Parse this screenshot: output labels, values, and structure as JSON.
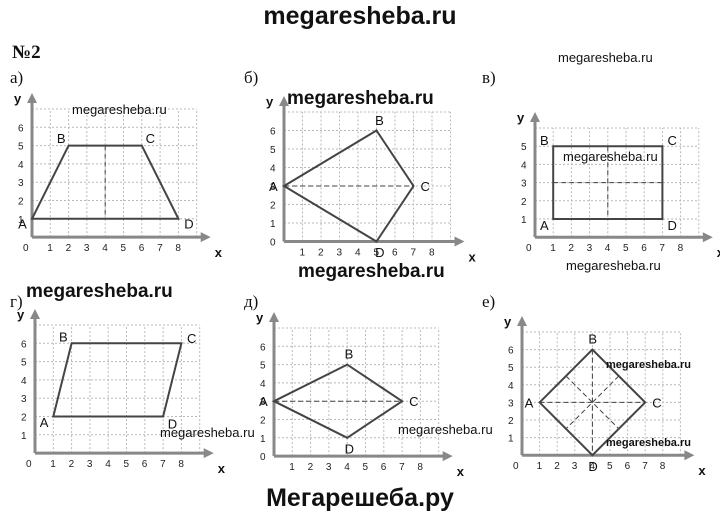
{
  "header": {
    "site": "megaresheba.ru",
    "problem": "№2"
  },
  "footer": {
    "site": "Мегарешеба.ру"
  },
  "panels": [
    {
      "letter": "а)",
      "x_name": "x",
      "y_name": "y",
      "x_ticks": [
        "0",
        "1",
        "2",
        "3",
        "4",
        "5",
        "6",
        "7",
        "8"
      ],
      "y_ticks": [
        "1",
        "2",
        "3",
        "4",
        "5",
        "6"
      ],
      "vertices": [
        {
          "label": "A",
          "x": 0,
          "y": 1
        },
        {
          "label": "B",
          "x": 2,
          "y": 5
        },
        {
          "label": "C",
          "x": 6,
          "y": 5
        },
        {
          "label": "D",
          "x": 8,
          "y": 1
        }
      ],
      "dashed": [
        {
          "x1": 4,
          "y1": 5,
          "x2": 4,
          "y2": 1
        }
      ]
    },
    {
      "letter": "б)",
      "x_name": "x",
      "y_name": "y",
      "x_ticks": [
        "1",
        "2",
        "3",
        "4",
        "5",
        "6",
        "7",
        "8"
      ],
      "y_ticks": [
        "0",
        "1",
        "2",
        "3",
        "4",
        "5",
        "6"
      ],
      "vertices": [
        {
          "label": "A",
          "x": 0,
          "y": 3
        },
        {
          "label": "B",
          "x": 5,
          "y": 6
        },
        {
          "label": "C",
          "x": 7,
          "y": 3
        },
        {
          "label": "D",
          "x": 5,
          "y": 0
        }
      ],
      "dashed": [
        {
          "x1": 0,
          "y1": 3,
          "x2": 7,
          "y2": 3
        }
      ]
    },
    {
      "letter": "в)",
      "x_name": "x",
      "y_name": "y",
      "x_ticks": [
        "0",
        "1",
        "2",
        "3",
        "4",
        "5",
        "6",
        "7",
        "8"
      ],
      "y_ticks": [
        "1",
        "2",
        "3",
        "4",
        "5"
      ],
      "vertices": [
        {
          "label": "A",
          "x": 1,
          "y": 1
        },
        {
          "label": "B",
          "x": 1,
          "y": 5
        },
        {
          "label": "C",
          "x": 7,
          "y": 5
        },
        {
          "label": "D",
          "x": 7,
          "y": 1
        }
      ],
      "dashed": [
        {
          "x1": 4,
          "y1": 5,
          "x2": 4,
          "y2": 1
        },
        {
          "x1": 1,
          "y1": 3,
          "x2": 7,
          "y2": 3
        }
      ]
    },
    {
      "letter": "г)",
      "x_name": "x",
      "y_name": "y",
      "x_ticks": [
        "0",
        "1",
        "2",
        "3",
        "4",
        "5",
        "6",
        "7",
        "8"
      ],
      "y_ticks": [
        "1",
        "2",
        "3",
        "4",
        "5",
        "6"
      ],
      "vertices": [
        {
          "label": "A",
          "x": 1,
          "y": 2
        },
        {
          "label": "B",
          "x": 2,
          "y": 6
        },
        {
          "label": "C",
          "x": 8,
          "y": 6
        },
        {
          "label": "D",
          "x": 7,
          "y": 2
        }
      ],
      "dashed": []
    },
    {
      "letter": "д)",
      "x_name": "x",
      "y_name": "y",
      "x_ticks": [
        "1",
        "2",
        "3",
        "4",
        "5",
        "6",
        "7",
        "8"
      ],
      "y_ticks": [
        "0",
        "1",
        "2",
        "3",
        "4",
        "5",
        "6"
      ],
      "vertices": [
        {
          "label": "A",
          "x": 0,
          "y": 3
        },
        {
          "label": "B",
          "x": 4,
          "y": 5
        },
        {
          "label": "C",
          "x": 7,
          "y": 3
        },
        {
          "label": "D",
          "x": 4,
          "y": 1
        }
      ],
      "dashed": [
        {
          "x1": 0,
          "y1": 3,
          "x2": 7,
          "y2": 3
        }
      ]
    },
    {
      "letter": "е)",
      "x_name": "x",
      "y_name": "y",
      "x_ticks": [
        "0",
        "1",
        "2",
        "3",
        "4",
        "5",
        "6",
        "7",
        "8"
      ],
      "y_ticks": [
        "1",
        "2",
        "3",
        "4",
        "5",
        "6"
      ],
      "vertices": [
        {
          "label": "A",
          "x": 1,
          "y": 3
        },
        {
          "label": "B",
          "x": 4,
          "y": 6
        },
        {
          "label": "C",
          "x": 7,
          "y": 3
        },
        {
          "label": "D",
          "x": 4,
          "y": 0
        }
      ],
      "dashed": [
        {
          "x1": 4,
          "y1": 6,
          "x2": 4,
          "y2": 0
        },
        {
          "x1": 1,
          "y1": 3,
          "x2": 7,
          "y2": 3
        },
        {
          "x1": 2.5,
          "y1": 4.5,
          "x2": 5.5,
          "y2": 1.5
        },
        {
          "x1": 5.5,
          "y1": 4.5,
          "x2": 2.5,
          "y2": 1.5
        }
      ]
    }
  ],
  "watermarks": {
    "w1": "megaresheba.ru",
    "w2": "megaresheba.ru",
    "w3": "megaresheba.ru",
    "w4": "megaresheba.ru",
    "w5": "megaresheba.ru",
    "w6": "megaresheba.ru",
    "w7": "megaresheba.ru",
    "w8": "megaresheba.ru",
    "w9": "megaresheba.ru",
    "w10": "megaresheba.ru",
    "w11": "megaresheba.ru",
    "w12": "megaresheba.ru"
  }
}
